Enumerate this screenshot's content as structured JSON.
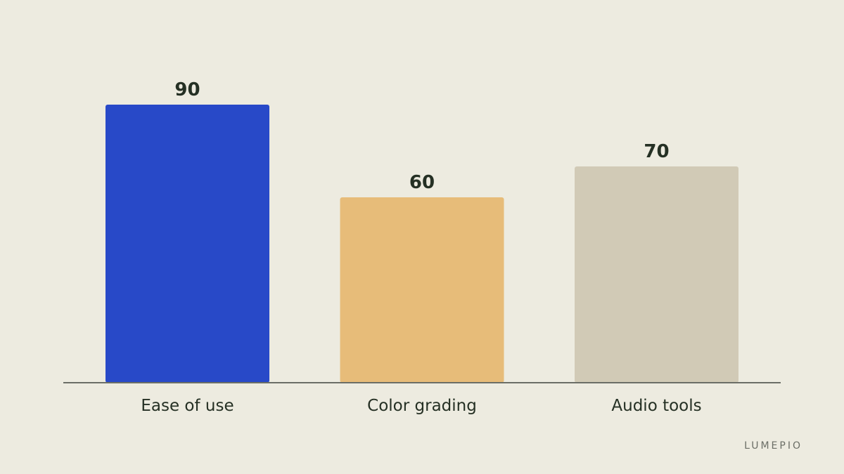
{
  "brand": {
    "name": "LUMEPIO"
  },
  "colors": {
    "background": "#edebe0",
    "axis": "#6b6e66",
    "text": "#253024"
  },
  "chart_data": {
    "type": "bar",
    "categories": [
      "Ease of use",
      "Color grading",
      "Audio tools"
    ],
    "values": [
      90,
      60,
      70
    ],
    "bar_colors": [
      "#2849c8",
      "#e7bc79",
      "#d1cab6"
    ],
    "ylim": [
      0,
      100
    ],
    "grid": false,
    "data_labels": true,
    "title": "",
    "xlabel": "",
    "ylabel": ""
  }
}
